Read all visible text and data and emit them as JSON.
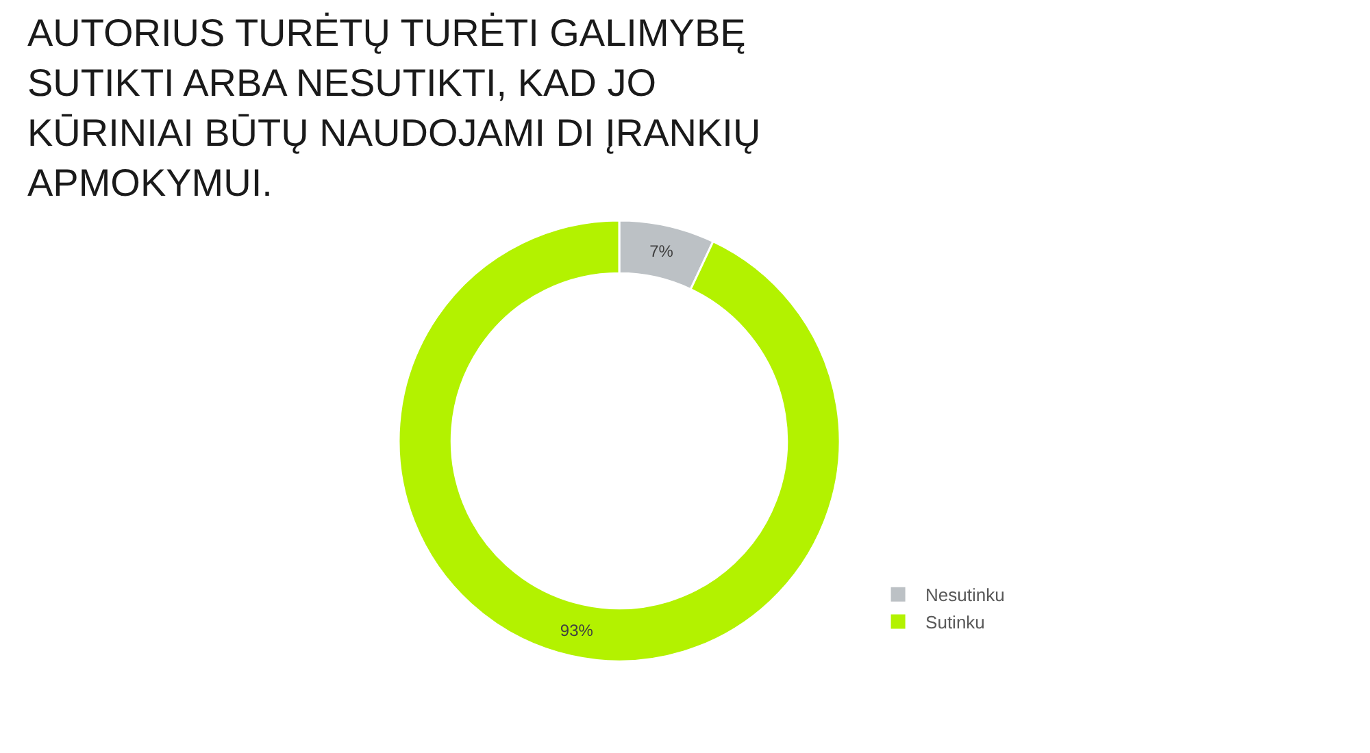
{
  "chart_data": {
    "type": "donut",
    "title": "AUTORIUS TURĖTŲ TURĖTI GALIMYBĘ SUTIKTI ARBA NESUTIKTI, KAD JO KŪRINIAI BŪTŲ NAUDOJAMI DI ĮRANKIŲ APMOKYMUI.",
    "categories": [
      "Nesutinku",
      "Sutinku"
    ],
    "values": [
      7,
      93
    ],
    "colors": [
      "#bcc1c5",
      "#b3f200"
    ],
    "value_labels": [
      "7%",
      "93%"
    ],
    "legend": "bottom right"
  }
}
